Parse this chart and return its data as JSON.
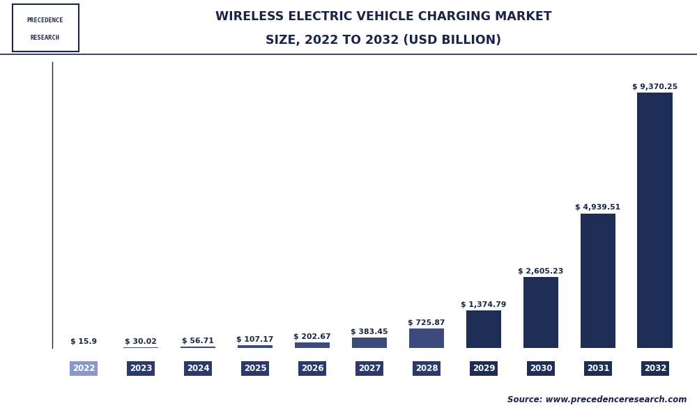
{
  "title_line1": "WIRELESS ELECTRIC VEHICLE CHARGING MARKET",
  "title_line2": "SIZE, 2022 TO 2032 (USD BILLION)",
  "categories": [
    "2022",
    "2023",
    "2024",
    "2025",
    "2026",
    "2027",
    "2028",
    "2029",
    "2030",
    "2031",
    "2032"
  ],
  "values": [
    15.9,
    30.02,
    56.71,
    107.17,
    202.67,
    383.45,
    725.87,
    1374.79,
    2605.23,
    4939.51,
    9370.25
  ],
  "labels": [
    "$ 15.9",
    "$ 30.02",
    "$ 56.71",
    "$ 107.17",
    "$ 202.67",
    "$ 383.45",
    "$ 725.87",
    "$ 1,374.79",
    "$ 2,605.23",
    "$ 4,939.51",
    "$ 9,370.25"
  ],
  "bar_colors": [
    "#aab2d4",
    "#3b4a7a",
    "#3b4a7a",
    "#3b4a7a",
    "#3b4a7a",
    "#3b4a7a",
    "#3b4a7a",
    "#1e2d55",
    "#1e2d55",
    "#1e2d55",
    "#1e2d55"
  ],
  "tick_colors": [
    "#8898cc",
    "#2a3a6e",
    "#2a3a6e",
    "#2a3a6e",
    "#2a3a6e",
    "#2a3a6e",
    "#2a3a6e",
    "#1e2d55",
    "#1e2d55",
    "#1e2d55",
    "#1e2d55"
  ],
  "background_color": "#ffffff",
  "plot_bg_color": "#ffffff",
  "grid_color": "#d8d8d8",
  "title_color": "#1a2545",
  "label_color": "#1a2545",
  "source_text": "Source: www.precedenceresearch.com",
  "logo_text_line1": "PRECEDENCE",
  "logo_text_line2": "RESEARCH",
  "ylim_max": 10500
}
